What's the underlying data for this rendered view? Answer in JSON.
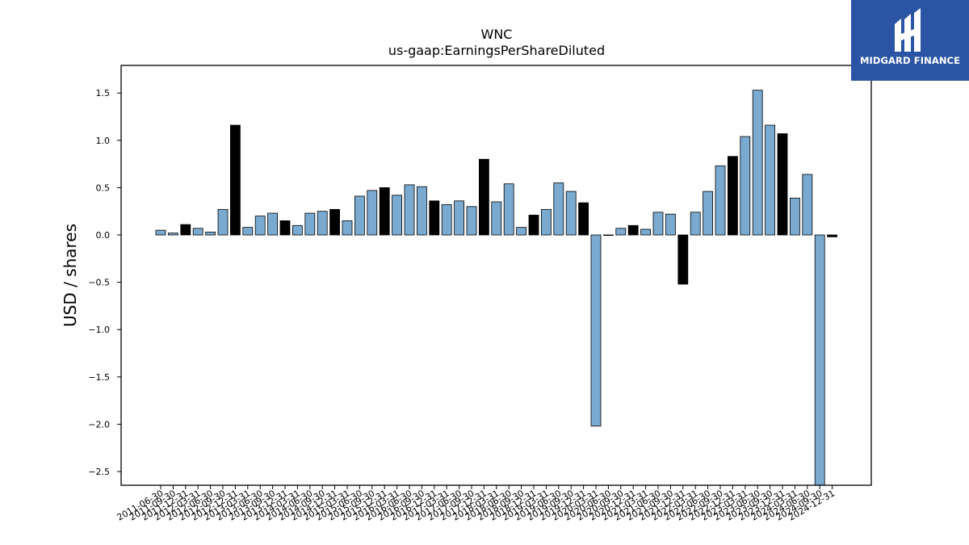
{
  "logo": {
    "text": "MIDGARD FINANCE",
    "icon": "midgard-logo-icon",
    "color": "#2b55a4"
  },
  "chart_data": {
    "type": "bar",
    "title": "WNC",
    "subtitle": "us-gaap:EarningsPerShareDiluted",
    "xlabel": "",
    "ylabel": "USD / shares",
    "ylim": [
      -2.65,
      1.8
    ],
    "yticks": [
      1.5,
      1.0,
      0.5,
      0.0,
      -0.5,
      -1.0,
      -1.5,
      -2.0,
      -2.5
    ],
    "ytick_labels": [
      "1.5",
      "1.0",
      "0.5",
      "0.0",
      "−0.5",
      "−1.0",
      "−1.5",
      "−2.0",
      "−2.5"
    ],
    "grid": false,
    "legend": "none",
    "colors": {
      "quarter": "#7aaad0",
      "annual": "#000000",
      "edge": "#000000"
    },
    "categories": [
      "2011-06-30",
      "2011-09-30",
      "2011-12-31",
      "2012-03-31",
      "2012-06-30",
      "2012-09-30",
      "2012-12-31",
      "2013-03-31",
      "2013-06-30",
      "2013-09-30",
      "2013-12-31",
      "2014-03-31",
      "2014-06-30",
      "2014-09-30",
      "2014-12-31",
      "2015-03-31",
      "2015-06-30",
      "2015-09-30",
      "2015-12-31",
      "2016-03-31",
      "2016-06-30",
      "2016-09-30",
      "2016-12-31",
      "2017-03-31",
      "2017-06-30",
      "2017-09-30",
      "2017-12-31",
      "2018-03-31",
      "2018-06-30",
      "2018-09-30",
      "2018-12-31",
      "2019-03-31",
      "2019-06-30",
      "2019-09-30",
      "2019-12-31",
      "2020-03-31",
      "2020-06-30",
      "2020-09-30",
      "2020-12-31",
      "2021-03-31",
      "2021-06-30",
      "2021-09-30",
      "2021-12-31",
      "2022-03-31",
      "2022-06-30",
      "2022-09-30",
      "2022-12-31",
      "2023-03-31",
      "2023-06-30",
      "2023-09-30",
      "2023-12-31",
      "2024-03-31",
      "2024-06-30",
      "2024-09-30",
      "2024-12-31"
    ],
    "values": [
      0.05,
      0.02,
      0.11,
      0.07,
      0.03,
      0.27,
      1.16,
      0.08,
      0.2,
      0.23,
      0.15,
      0.1,
      0.23,
      0.25,
      0.27,
      0.15,
      0.41,
      0.47,
      0.5,
      0.42,
      0.53,
      0.51,
      0.36,
      0.32,
      0.36,
      0.3,
      0.8,
      0.35,
      0.54,
      0.08,
      0.21,
      0.27,
      0.55,
      0.46,
      0.34,
      -2.02,
      0.0,
      0.07,
      0.1,
      0.06,
      0.24,
      0.22,
      -0.52,
      0.24,
      0.46,
      0.73,
      0.83,
      1.04,
      1.53,
      1.16,
      1.07,
      0.39,
      0.64,
      -2.65,
      -0.02
    ],
    "annual": [
      false,
      false,
      true,
      false,
      false,
      false,
      true,
      false,
      false,
      false,
      true,
      false,
      false,
      false,
      true,
      false,
      false,
      false,
      true,
      false,
      false,
      false,
      true,
      false,
      false,
      false,
      true,
      false,
      false,
      false,
      true,
      false,
      false,
      false,
      true,
      false,
      false,
      false,
      true,
      false,
      false,
      false,
      true,
      false,
      false,
      false,
      true,
      false,
      false,
      false,
      true,
      false,
      false,
      false,
      true
    ]
  }
}
